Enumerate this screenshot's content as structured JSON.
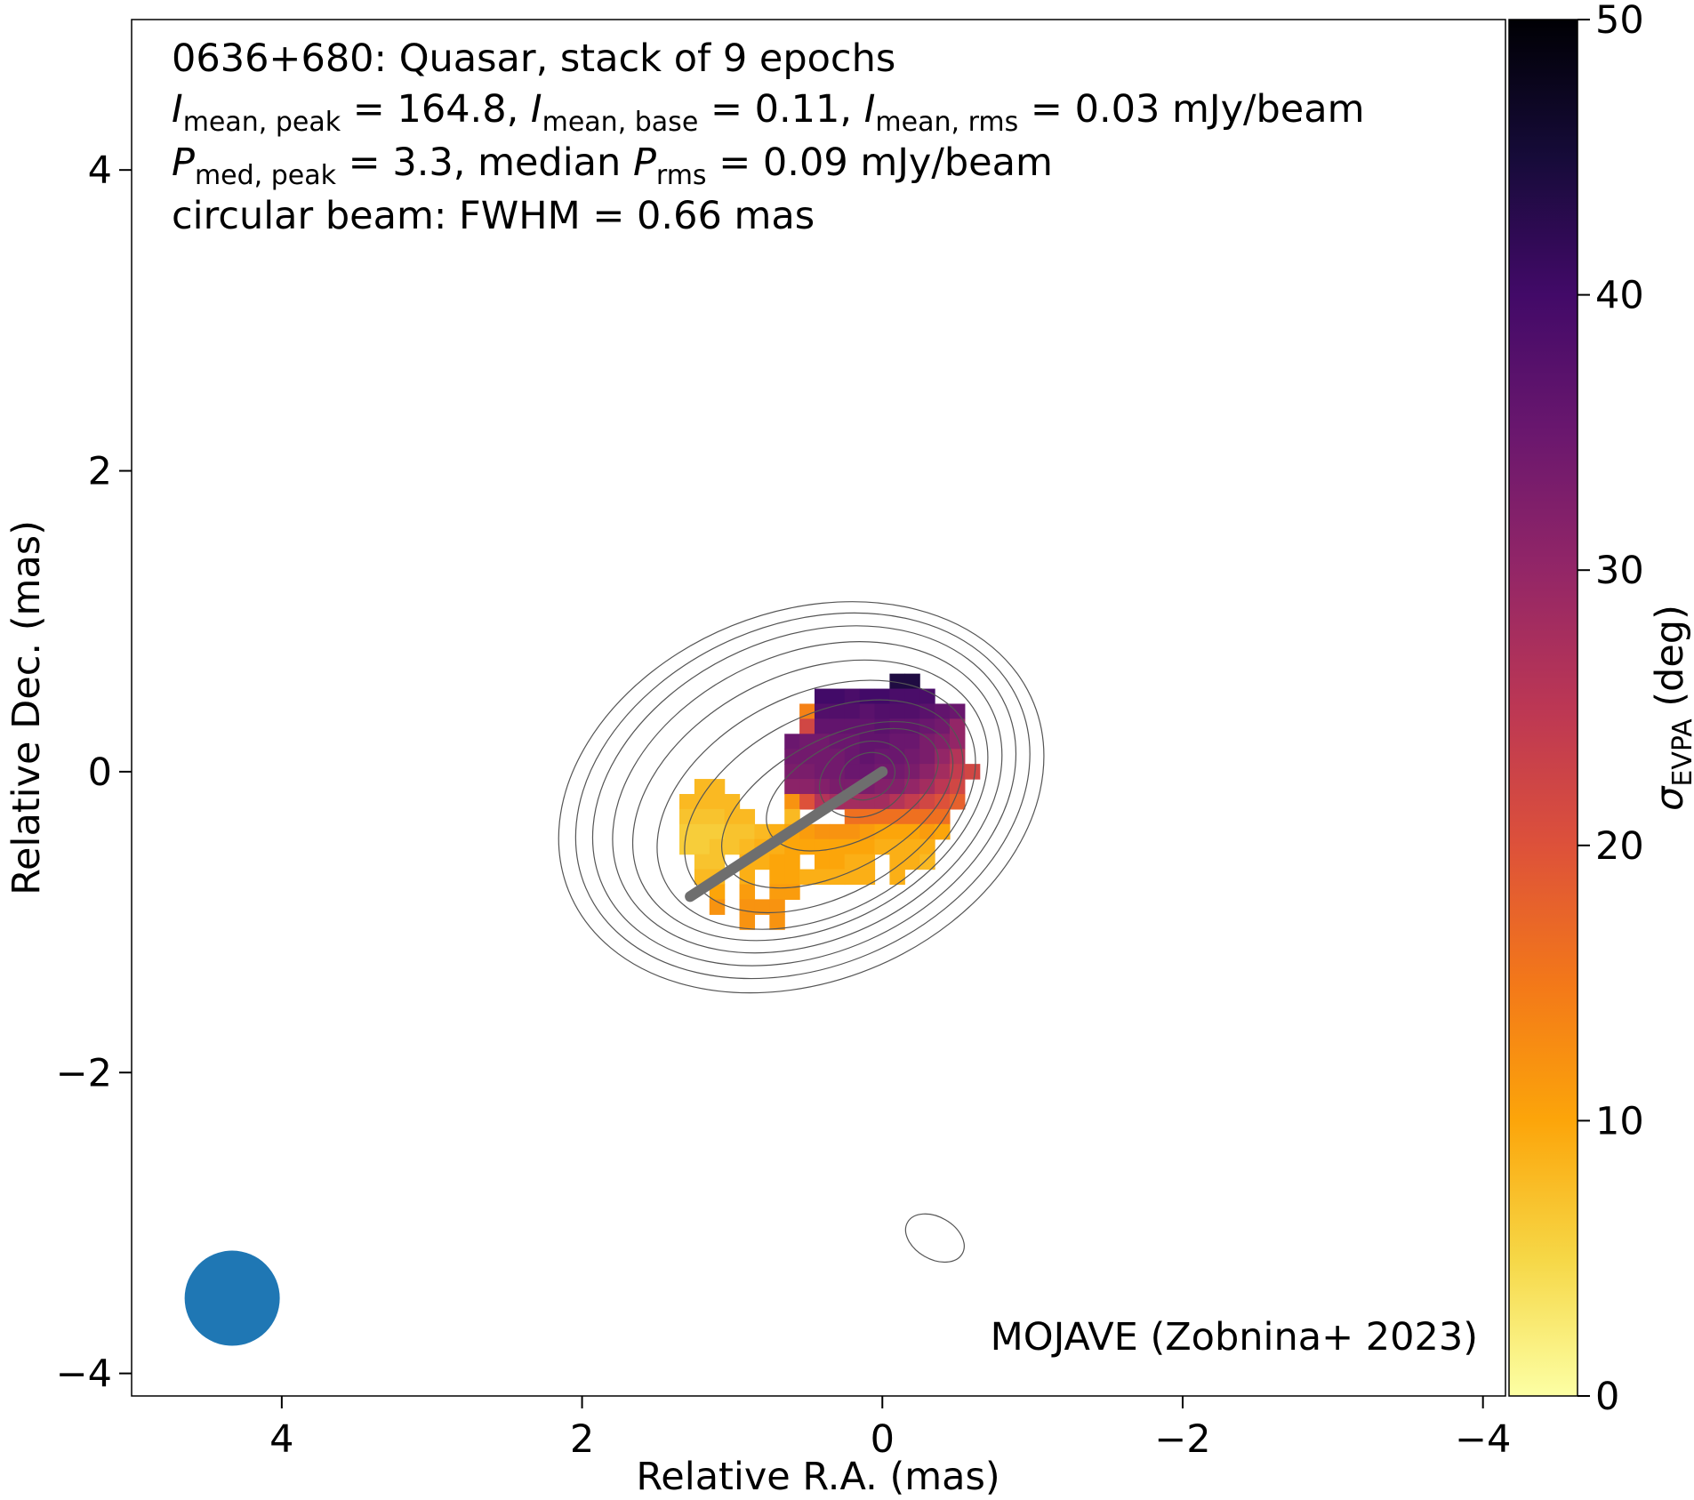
{
  "chart_data": {
    "type": "heatmap",
    "annotation": {
      "line1": "0636+680: Quasar, stack of 9 epochs",
      "line2": {
        "s1": "I",
        "sub1": "mean, peak",
        "s2": " = 164.8, ",
        "s3": "I",
        "sub3": "mean, base",
        "s4": " = 0.11, ",
        "s5": "I",
        "sub5": "mean, rms",
        "s6": " = 0.03 mJy/beam"
      },
      "line3": {
        "s1": "P",
        "sub1": "med, peak",
        "s2": " = 3.3, median ",
        "s3": "P",
        "sub3": "rms",
        "s4": " = 0.09 mJy/beam"
      },
      "line4": "circular beam: FWHM = 0.66 mas"
    },
    "credit": "MOJAVE (Zobnina+ 2023)",
    "xlabel": "Relative R.A. (mas)",
    "ylabel": "Relative Dec. (mas)",
    "xlim": [
      5,
      -4.15
    ],
    "ylim": [
      -4.15,
      5
    ],
    "xticks": [
      4,
      2,
      0,
      -2,
      -4
    ],
    "yticks": [
      4,
      2,
      0,
      -2,
      -4
    ],
    "colorbar": {
      "label_symbol": "σ",
      "label_sub": "EVPA",
      "label_unit": " (deg)",
      "range": [
        0,
        50
      ],
      "ticks": [
        0,
        10,
        20,
        30,
        40,
        50
      ],
      "colormap": "inferno_r"
    },
    "beam": {
      "x": 4.33,
      "y": -3.5,
      "fwhm_mas": 0.66,
      "color": "#1f77b4"
    },
    "jet_direction_line": {
      "x": [
        0,
        1.28
      ],
      "y": [
        0,
        -0.83
      ],
      "color": "#6e6e6e"
    },
    "pixel_size_mas": 0.1,
    "sigma_evpa_rows": [
      {
        "y": 0.6,
        "cells": [
          [
            -0.1,
            44
          ],
          [
            -0.2,
            44
          ]
        ]
      },
      {
        "y": 0.5,
        "cells": [
          [
            0.4,
            40
          ],
          [
            0.3,
            40
          ],
          [
            0.2,
            39
          ],
          [
            0.1,
            40
          ],
          [
            0.0,
            40
          ],
          [
            -0.1,
            39
          ],
          [
            -0.2,
            39
          ],
          [
            -0.3,
            39
          ]
        ]
      },
      {
        "y": 0.4,
        "cells": [
          [
            0.5,
            14
          ],
          [
            0.4,
            38
          ],
          [
            0.3,
            38
          ],
          [
            0.2,
            38
          ],
          [
            0.1,
            37
          ],
          [
            0.0,
            38
          ],
          [
            -0.1,
            38
          ],
          [
            -0.2,
            38
          ],
          [
            -0.3,
            37
          ],
          [
            -0.4,
            36
          ],
          [
            -0.5,
            35
          ]
        ]
      },
      {
        "y": 0.3,
        "cells": [
          [
            0.5,
            22
          ],
          [
            0.4,
            36
          ],
          [
            0.3,
            36
          ],
          [
            0.2,
            36
          ],
          [
            0.1,
            36
          ],
          [
            0.0,
            37
          ],
          [
            -0.1,
            36
          ],
          [
            -0.2,
            36
          ],
          [
            -0.3,
            35
          ],
          [
            -0.4,
            34
          ],
          [
            -0.5,
            30
          ]
        ]
      },
      {
        "y": 0.2,
        "cells": [
          [
            0.6,
            35
          ],
          [
            0.5,
            34
          ],
          [
            0.4,
            34
          ],
          [
            0.3,
            35
          ],
          [
            0.2,
            35
          ],
          [
            0.1,
            36
          ],
          [
            0.0,
            36
          ],
          [
            -0.1,
            35
          ],
          [
            -0.2,
            35
          ],
          [
            -0.3,
            33
          ],
          [
            -0.4,
            32
          ],
          [
            -0.5,
            30
          ]
        ]
      },
      {
        "y": 0.1,
        "cells": [
          [
            0.6,
            34
          ],
          [
            0.5,
            34
          ],
          [
            0.4,
            34
          ],
          [
            0.3,
            34
          ],
          [
            0.2,
            35
          ],
          [
            0.1,
            36
          ],
          [
            0.0,
            35
          ],
          [
            -0.1,
            35
          ],
          [
            -0.2,
            34
          ],
          [
            -0.3,
            33
          ],
          [
            -0.4,
            30
          ],
          [
            -0.5,
            26
          ]
        ]
      },
      {
        "y": 0.0,
        "cells": [
          [
            0.6,
            33
          ],
          [
            0.5,
            33
          ],
          [
            0.4,
            34
          ],
          [
            0.3,
            34
          ],
          [
            0.2,
            35
          ],
          [
            0.1,
            35
          ],
          [
            0.0,
            34
          ],
          [
            -0.1,
            34
          ],
          [
            -0.2,
            33
          ],
          [
            -0.3,
            31
          ],
          [
            -0.4,
            28
          ],
          [
            -0.5,
            24
          ],
          [
            -0.6,
            22
          ]
        ]
      },
      {
        "y": -0.1,
        "cells": [
          [
            1.2,
            8
          ],
          [
            1.1,
            8
          ],
          [
            0.6,
            31
          ],
          [
            0.5,
            31
          ],
          [
            0.4,
            32
          ],
          [
            0.3,
            33
          ],
          [
            0.2,
            33
          ],
          [
            0.1,
            33
          ],
          [
            0.0,
            32
          ],
          [
            -0.1,
            32
          ],
          [
            -0.2,
            30
          ],
          [
            -0.3,
            28
          ],
          [
            -0.4,
            25
          ],
          [
            -0.5,
            22
          ]
        ]
      },
      {
        "y": -0.2,
        "cells": [
          [
            1.3,
            8
          ],
          [
            1.2,
            8
          ],
          [
            1.1,
            8
          ],
          [
            1.0,
            8
          ],
          [
            0.6,
            12
          ],
          [
            0.5,
            20
          ],
          [
            0.4,
            26
          ],
          [
            0.3,
            28
          ],
          [
            0.2,
            28
          ],
          [
            0.1,
            28
          ],
          [
            0.0,
            28
          ],
          [
            -0.1,
            26
          ],
          [
            -0.2,
            24
          ],
          [
            -0.3,
            22
          ],
          [
            -0.4,
            20
          ],
          [
            -0.5,
            18
          ]
        ]
      },
      {
        "y": -0.3,
        "cells": [
          [
            1.3,
            7
          ],
          [
            1.2,
            7
          ],
          [
            1.1,
            7
          ],
          [
            1.0,
            8
          ],
          [
            0.9,
            8
          ],
          [
            0.6,
            8
          ],
          [
            0.2,
            16
          ],
          [
            0.1,
            16
          ],
          [
            0.0,
            16
          ],
          [
            -0.1,
            16
          ],
          [
            -0.2,
            16
          ],
          [
            -0.3,
            16
          ],
          [
            -0.4,
            16
          ]
        ]
      },
      {
        "y": -0.4,
        "cells": [
          [
            1.3,
            6
          ],
          [
            1.2,
            6
          ],
          [
            1.1,
            6
          ],
          [
            1.0,
            7
          ],
          [
            0.9,
            7
          ],
          [
            0.8,
            8
          ],
          [
            0.7,
            9
          ],
          [
            0.6,
            10
          ],
          [
            0.5,
            11
          ],
          [
            0.4,
            12
          ],
          [
            0.3,
            12
          ],
          [
            0.2,
            12
          ],
          [
            0.1,
            11
          ],
          [
            0.0,
            10
          ],
          [
            -0.1,
            10
          ],
          [
            -0.2,
            10
          ],
          [
            -0.3,
            11
          ],
          [
            -0.4,
            10
          ]
        ]
      },
      {
        "y": -0.5,
        "cells": [
          [
            1.3,
            6
          ],
          [
            1.2,
            6
          ],
          [
            1.1,
            7
          ],
          [
            1.0,
            7
          ],
          [
            0.9,
            8
          ],
          [
            0.8,
            9
          ],
          [
            0.7,
            9
          ],
          [
            0.6,
            10
          ],
          [
            0.5,
            10
          ],
          [
            0.4,
            10
          ],
          [
            0.3,
            10
          ],
          [
            0.2,
            10
          ],
          [
            0.1,
            10
          ],
          [
            0.0,
            9
          ],
          [
            -0.1,
            9
          ],
          [
            -0.2,
            9
          ],
          [
            -0.3,
            9
          ]
        ]
      },
      {
        "y": -0.6,
        "cells": [
          [
            1.2,
            7
          ],
          [
            1.1,
            7
          ],
          [
            0.9,
            9
          ],
          [
            0.8,
            9
          ],
          [
            0.7,
            10
          ],
          [
            0.6,
            10
          ],
          [
            0.4,
            10
          ],
          [
            0.3,
            10
          ],
          [
            0.2,
            9
          ],
          [
            0.1,
            9
          ],
          [
            -0.1,
            9
          ],
          [
            -0.2,
            9
          ],
          [
            -0.3,
            8
          ]
        ]
      },
      {
        "y": -0.7,
        "cells": [
          [
            1.2,
            8
          ],
          [
            1.1,
            8
          ],
          [
            0.9,
            9
          ],
          [
            0.7,
            10
          ],
          [
            0.6,
            10
          ],
          [
            0.5,
            9
          ],
          [
            0.4,
            9
          ],
          [
            0.3,
            9
          ],
          [
            0.2,
            9
          ],
          [
            0.1,
            9
          ],
          [
            -0.1,
            9
          ]
        ]
      },
      {
        "y": -0.8,
        "cells": [
          [
            1.1,
            10
          ],
          [
            0.9,
            11
          ],
          [
            0.7,
            11
          ],
          [
            0.6,
            11
          ]
        ]
      },
      {
        "y": -0.9,
        "cells": [
          [
            1.1,
            12
          ],
          [
            0.9,
            12
          ],
          [
            0.8,
            12
          ],
          [
            0.7,
            12
          ]
        ]
      },
      {
        "y": -1.0,
        "cells": [
          [
            0.9,
            12
          ],
          [
            0.7,
            12
          ]
        ]
      }
    ],
    "intensity_contours": [
      {
        "center": [
          0.1,
          -0.03
        ],
        "rx": 0.19,
        "ry": 0.15,
        "angle": -25
      },
      {
        "center": [
          0.12,
          -0.05
        ],
        "rx": 0.31,
        "ry": 0.24,
        "angle": -25
      },
      {
        "center": [
          0.2,
          -0.12
        ],
        "rx": 0.62,
        "ry": 0.33,
        "angle": -27
      },
      {
        "center": [
          0.3,
          -0.22
        ],
        "rx": 0.84,
        "ry": 0.44,
        "angle": -28
      },
      {
        "center": [
          0.39,
          -0.23
        ],
        "rx": 1.0,
        "ry": 0.6,
        "angle": -28
      },
      {
        "center": [
          0.44,
          -0.22
        ],
        "rx": 1.13,
        "ry": 0.73,
        "angle": -27
      },
      {
        "center": [
          0.48,
          -0.19
        ],
        "rx": 1.25,
        "ry": 0.84,
        "angle": -26
      },
      {
        "center": [
          0.5,
          -0.17
        ],
        "rx": 1.36,
        "ry": 0.95,
        "angle": -25
      },
      {
        "center": [
          0.52,
          -0.16
        ],
        "rx": 1.47,
        "ry": 1.05,
        "angle": -24
      },
      {
        "center": [
          0.53,
          -0.16
        ],
        "rx": 1.57,
        "ry": 1.14,
        "angle": -23
      },
      {
        "center": [
          0.54,
          -0.17
        ],
        "rx": 1.67,
        "ry": 1.23,
        "angle": -22
      },
      {
        "center": [
          -0.35,
          -3.1
        ],
        "rx": 0.21,
        "ry": 0.14,
        "angle": 30
      }
    ]
  }
}
